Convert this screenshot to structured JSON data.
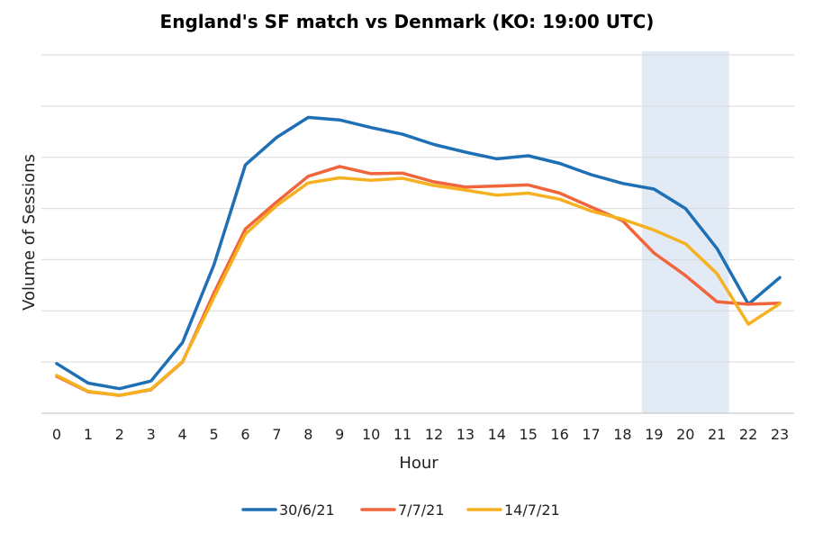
{
  "chart_data": {
    "type": "line",
    "title": "England's SF match vs Denmark (KO: 19:00 UTC)",
    "xlabel": "Hour",
    "ylabel": "Volume of Sessions",
    "x": [
      0,
      1,
      2,
      3,
      4,
      5,
      6,
      7,
      8,
      9,
      10,
      11,
      12,
      13,
      14,
      15,
      16,
      17,
      18,
      19,
      20,
      21,
      22,
      23
    ],
    "ylim": [
      0,
      7
    ],
    "grid": true,
    "legend_position": "bottom",
    "highlight_range": [
      19,
      21
    ],
    "series": [
      {
        "name": "30/6/21",
        "color": "#1f6fb5",
        "values": [
          0.97,
          0.59,
          0.48,
          0.63,
          1.38,
          2.9,
          4.85,
          5.39,
          5.78,
          5.73,
          5.58,
          5.45,
          5.25,
          5.1,
          4.97,
          5.03,
          4.88,
          4.66,
          4.49,
          4.38,
          4.0,
          3.22,
          2.13,
          2.65
        ]
      },
      {
        "name": "7/7/21",
        "color": "#f0653b",
        "values": [
          0.72,
          0.42,
          0.35,
          0.46,
          1.0,
          2.35,
          3.6,
          4.13,
          4.63,
          4.82,
          4.68,
          4.69,
          4.52,
          4.42,
          4.44,
          4.46,
          4.3,
          4.03,
          3.76,
          3.13,
          2.69,
          2.18,
          2.13,
          2.15
        ]
      },
      {
        "name": "14/7/21",
        "color": "#f5b120",
        "values": [
          0.74,
          0.43,
          0.35,
          0.47,
          1.01,
          2.26,
          3.5,
          4.06,
          4.5,
          4.6,
          4.55,
          4.59,
          4.45,
          4.36,
          4.26,
          4.3,
          4.18,
          3.95,
          3.79,
          3.58,
          3.31,
          2.73,
          1.74,
          2.14
        ]
      }
    ]
  }
}
